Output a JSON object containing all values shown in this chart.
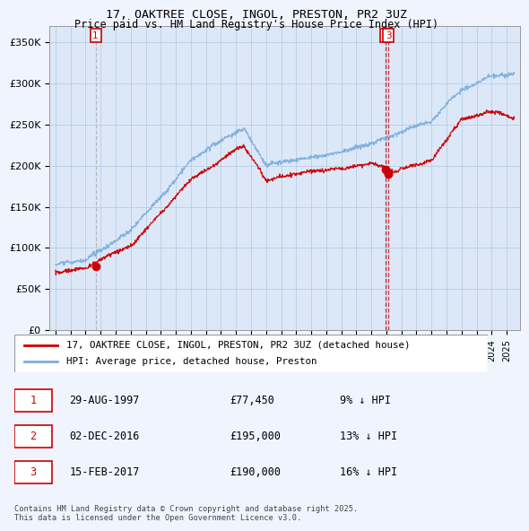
{
  "title": "17, OAKTREE CLOSE, INGOL, PRESTON, PR2 3UZ",
  "subtitle": "Price paid vs. HM Land Registry's House Price Index (HPI)",
  "ylim": [
    0,
    370000
  ],
  "yticks": [
    0,
    50000,
    100000,
    150000,
    200000,
    250000,
    300000,
    350000
  ],
  "ytick_labels": [
    "£0",
    "£50K",
    "£100K",
    "£150K",
    "£200K",
    "£250K",
    "£300K",
    "£350K"
  ],
  "sale_year_nums": [
    1997.664,
    2016.917,
    2017.125
  ],
  "sale_prices": [
    77450,
    195000,
    190000
  ],
  "sale_labels": [
    "1",
    "2",
    "3"
  ],
  "legend_red": "17, OAKTREE CLOSE, INGOL, PRESTON, PR2 3UZ (detached house)",
  "legend_blue": "HPI: Average price, detached house, Preston",
  "table_rows": [
    [
      "1",
      "29-AUG-1997",
      "£77,450",
      "9% ↓ HPI"
    ],
    [
      "2",
      "02-DEC-2016",
      "£195,000",
      "13% ↓ HPI"
    ],
    [
      "3",
      "15-FEB-2017",
      "£190,000",
      "16% ↓ HPI"
    ]
  ],
  "footnote": "Contains HM Land Registry data © Crown copyright and database right 2025.\nThis data is licensed under the Open Government Licence v3.0.",
  "bg_color": "#f0f4ff",
  "plot_bg_color": "#dce8f8",
  "red_color": "#cc0000",
  "blue_color": "#7aaddd",
  "grid_color": "#b0c8e0",
  "vline1_color": "#aaaaaa",
  "vline3_color": "#cc0000"
}
